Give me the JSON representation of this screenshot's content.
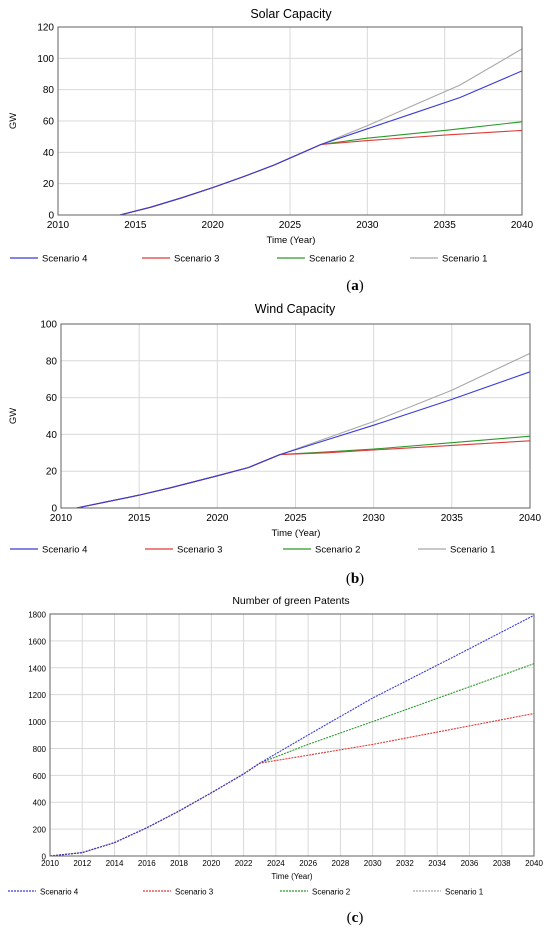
{
  "chart_data": [
    {
      "type": "line",
      "panel": "(a)",
      "panel_letter": "a",
      "title": "Solar Capacity",
      "xlabel": "Time (Year)",
      "ylabel": "GW",
      "xlim": [
        2010,
        2040
      ],
      "ylim": [
        0,
        120
      ],
      "xticks": [
        2010,
        2015,
        2020,
        2025,
        2030,
        2035,
        2040
      ],
      "yticks": [
        0,
        20,
        40,
        60,
        80,
        100,
        120
      ],
      "grid": true,
      "legend_position": "bottom",
      "series": [
        {
          "name": "Scenario 4",
          "color": "#3a3ad8",
          "x": [
            2010,
            2014,
            2016,
            2018,
            2020,
            2022,
            2024,
            2027,
            2030,
            2033,
            2036,
            2040
          ],
          "y": [
            0,
            0,
            5,
            11,
            17.5,
            24.5,
            32,
            45,
            55,
            65,
            75,
            92
          ]
        },
        {
          "name": "Scenario 3",
          "color": "#e03a3a",
          "x": [
            2010,
            2014,
            2016,
            2018,
            2020,
            2022,
            2024,
            2027,
            2030,
            2035,
            2040
          ],
          "y": [
            0,
            0,
            5,
            11,
            17.5,
            24.5,
            32,
            45,
            47.5,
            51,
            54
          ]
        },
        {
          "name": "Scenario 2",
          "color": "#2a9a2a",
          "x": [
            2010,
            2014,
            2016,
            2018,
            2020,
            2022,
            2024,
            2027,
            2030,
            2035,
            2040
          ],
          "y": [
            0,
            0,
            5,
            11,
            17.5,
            24.5,
            32,
            45,
            49,
            54,
            59.5
          ]
        },
        {
          "name": "Scenario 1",
          "color": "#a8a8a8",
          "x": [
            2010,
            2014,
            2016,
            2018,
            2020,
            2022,
            2024,
            2027,
            2030,
            2033,
            2036,
            2040
          ],
          "y": [
            0,
            0,
            5,
            11,
            17.5,
            24.5,
            32,
            45,
            57,
            70,
            83,
            106
          ]
        }
      ]
    },
    {
      "type": "line",
      "panel": "(b)",
      "panel_letter": "b",
      "title": "Wind Capacity",
      "xlabel": "Time (Year)",
      "ylabel": "GW",
      "xlim": [
        2010,
        2040
      ],
      "ylim": [
        0,
        100
      ],
      "xticks": [
        2010,
        2015,
        2020,
        2025,
        2030,
        2035,
        2040
      ],
      "yticks": [
        0,
        20,
        40,
        60,
        80,
        100
      ],
      "grid": true,
      "legend_position": "bottom",
      "series": [
        {
          "name": "Scenario 4",
          "color": "#3a3ad8",
          "x": [
            2010,
            2011,
            2013,
            2015,
            2017,
            2020,
            2022,
            2024,
            2027,
            2030,
            2035,
            2040
          ],
          "y": [
            0,
            0,
            3.5,
            7,
            11,
            17.5,
            22,
            29,
            37,
            45,
            59,
            74
          ]
        },
        {
          "name": "Scenario 3",
          "color": "#e03a3a",
          "x": [
            2010,
            2011,
            2013,
            2015,
            2017,
            2020,
            2022,
            2024,
            2027,
            2030,
            2035,
            2040
          ],
          "y": [
            0,
            0,
            3.5,
            7,
            11,
            17.5,
            22,
            29,
            30,
            31.5,
            34,
            36.5
          ]
        },
        {
          "name": "Scenario 2",
          "color": "#2a9a2a",
          "x": [
            2010,
            2011,
            2013,
            2015,
            2017,
            2020,
            2022,
            2024,
            2027,
            2030,
            2035,
            2040
          ],
          "y": [
            0,
            0,
            3.5,
            7,
            11,
            17.5,
            22,
            29,
            30.5,
            32,
            35.5,
            39
          ]
        },
        {
          "name": "Scenario 1",
          "color": "#a8a8a8",
          "x": [
            2010,
            2011,
            2013,
            2015,
            2017,
            2020,
            2022,
            2024,
            2027,
            2030,
            2035,
            2040
          ],
          "y": [
            0,
            0,
            3.5,
            7,
            11,
            17.5,
            22,
            29,
            38,
            47,
            64,
            84
          ]
        }
      ]
    },
    {
      "type": "line",
      "panel": "(c)",
      "panel_letter": "c",
      "title": "Number of green Patents",
      "xlabel": "Time (Year)",
      "ylabel": "",
      "xlim": [
        2010,
        2040
      ],
      "ylim": [
        0,
        1800
      ],
      "xticks": [
        2010,
        2012,
        2014,
        2016,
        2018,
        2020,
        2022,
        2024,
        2026,
        2028,
        2030,
        2032,
        2034,
        2036,
        2038,
        2040
      ],
      "yticks": [
        0,
        200,
        400,
        600,
        800,
        1000,
        1200,
        1400,
        1600,
        1800
      ],
      "grid": true,
      "legend_position": "bottom",
      "series": [
        {
          "name": "Scenario 4",
          "color": "#3a3ad8",
          "x": [
            2010,
            2012,
            2014,
            2016,
            2018,
            2020,
            2022,
            2023,
            2026,
            2030,
            2035,
            2040
          ],
          "y": [
            0,
            25,
            100,
            210,
            335,
            470,
            610,
            690,
            900,
            1175,
            1480,
            1790
          ]
        },
        {
          "name": "Scenario 3",
          "color": "#e03a3a",
          "x": [
            2010,
            2012,
            2014,
            2016,
            2018,
            2020,
            2022,
            2023,
            2026,
            2030,
            2035,
            2040
          ],
          "y": [
            0,
            25,
            100,
            210,
            335,
            470,
            610,
            690,
            750,
            830,
            945,
            1060
          ]
        },
        {
          "name": "Scenario 2",
          "color": "#2a9a2a",
          "x": [
            2010,
            2012,
            2014,
            2016,
            2018,
            2020,
            2022,
            2023,
            2026,
            2030,
            2035,
            2040
          ],
          "y": [
            0,
            25,
            100,
            210,
            335,
            470,
            610,
            690,
            830,
            1000,
            1215,
            1430
          ]
        },
        {
          "name": "Scenario 1",
          "color": "#a8a8a8",
          "x": [
            2010,
            2012,
            2014,
            2016,
            2018,
            2020,
            2022,
            2023
          ],
          "y": [
            0,
            25,
            100,
            210,
            335,
            470,
            610,
            690
          ]
        }
      ]
    }
  ]
}
